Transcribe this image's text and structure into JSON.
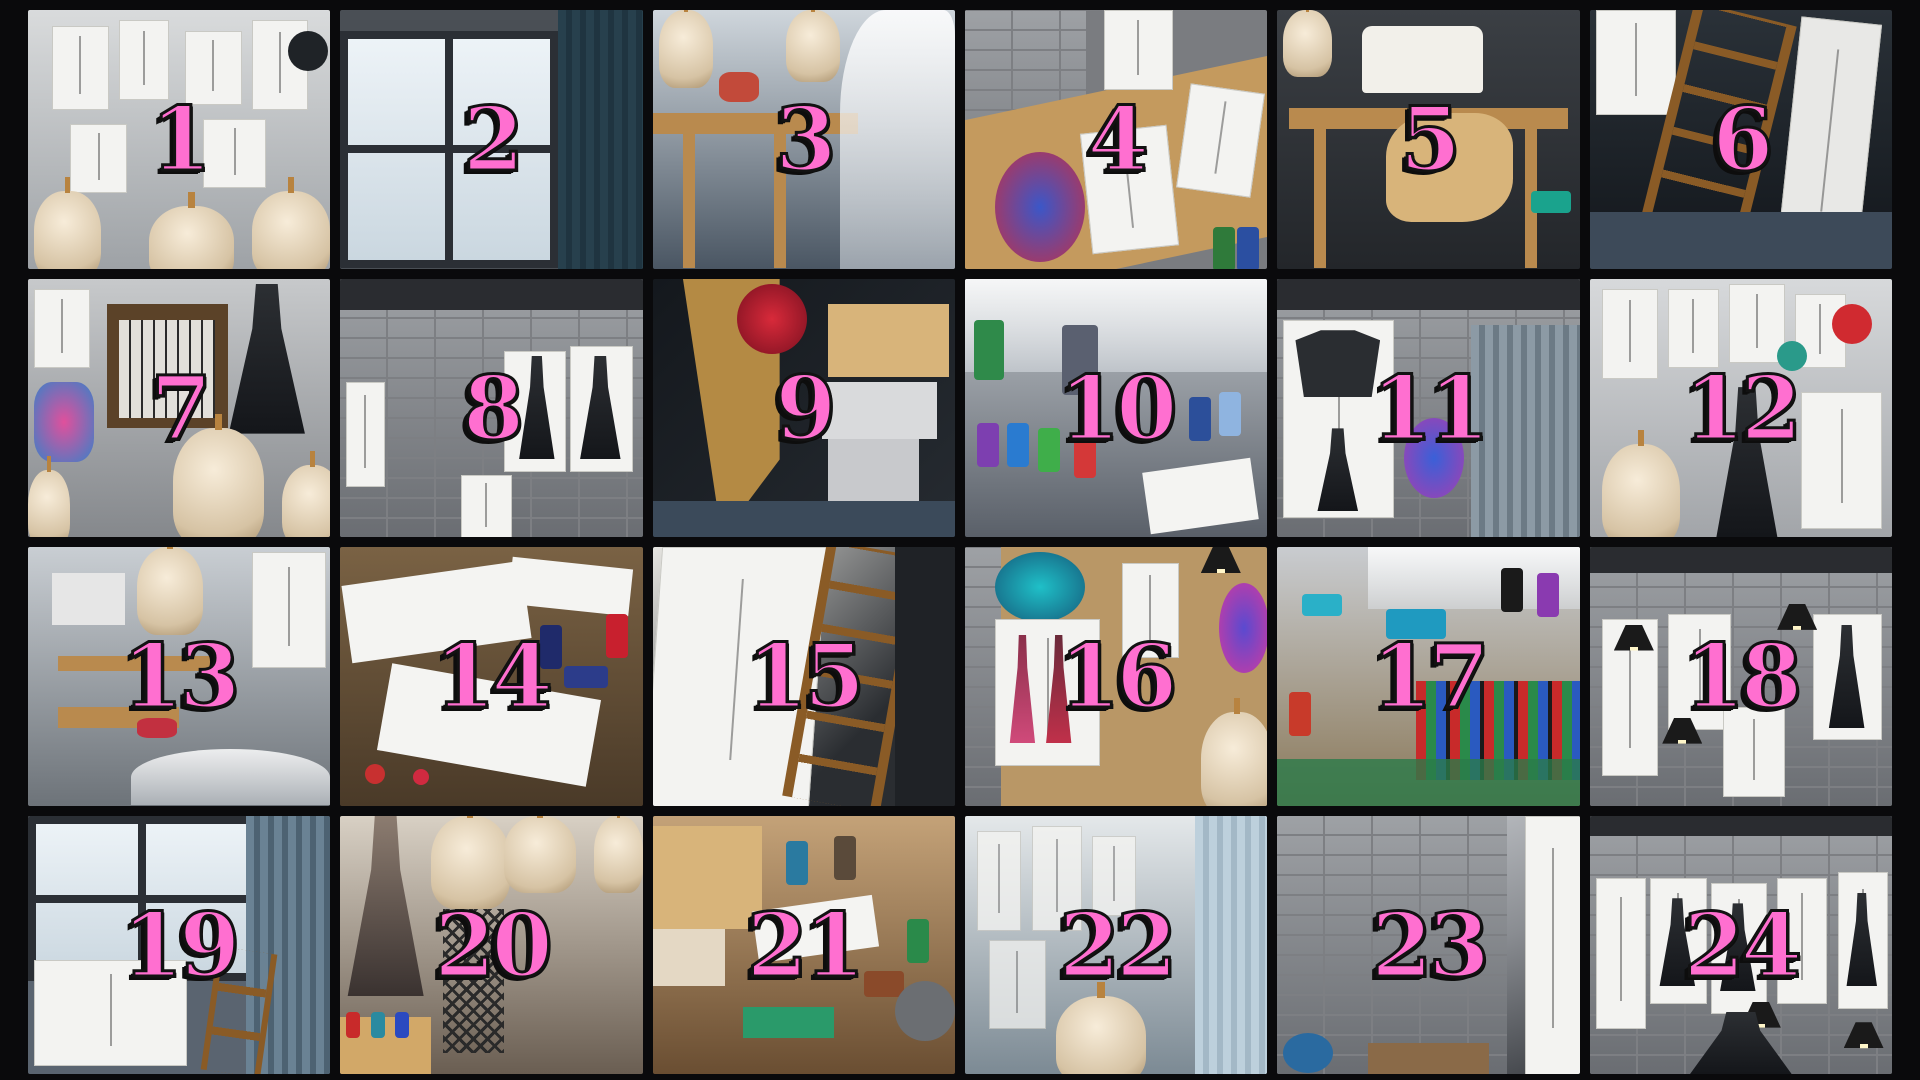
{
  "tiles": [
    {
      "label": "1"
    },
    {
      "label": "2"
    },
    {
      "label": "3"
    },
    {
      "label": "4"
    },
    {
      "label": "5"
    },
    {
      "label": "6"
    },
    {
      "label": "7"
    },
    {
      "label": "8"
    },
    {
      "label": "9"
    },
    {
      "label": "10"
    },
    {
      "label": "11"
    },
    {
      "label": "12"
    },
    {
      "label": "13"
    },
    {
      "label": "14"
    },
    {
      "label": "15"
    },
    {
      "label": "16"
    },
    {
      "label": "17"
    },
    {
      "label": "18"
    },
    {
      "label": "19"
    },
    {
      "label": "20"
    },
    {
      "label": "21"
    },
    {
      "label": "22"
    },
    {
      "label": "23"
    },
    {
      "label": "24"
    }
  ],
  "colors": {
    "number_fill": "#ff6fd0",
    "number_outline": "#121212",
    "background": "#0a0a0c"
  }
}
